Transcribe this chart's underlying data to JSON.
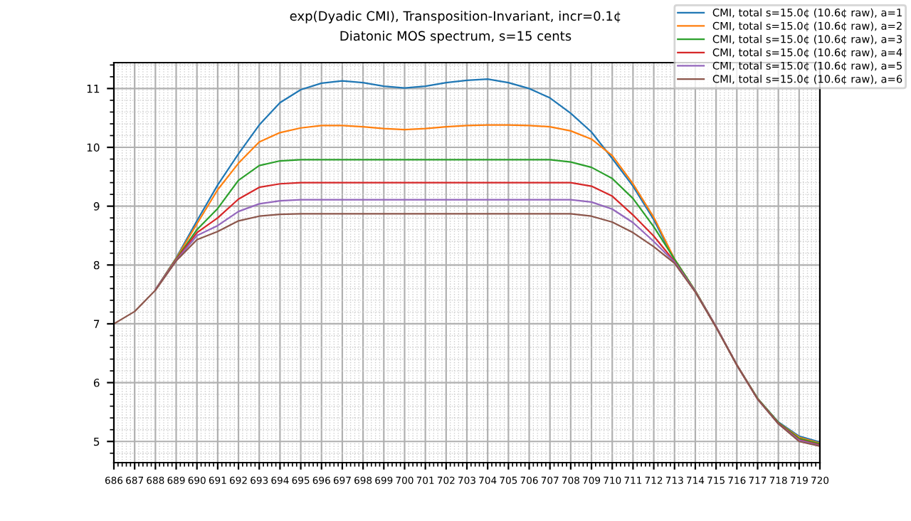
{
  "chart_data": {
    "type": "line",
    "title": "exp(Dyadic CMI), Transposition-Invariant, incr=0.1¢",
    "subtitle": "Diatonic MOS spectrum, s=15 cents",
    "x": [
      686,
      687,
      688,
      689,
      690,
      691,
      692,
      693,
      694,
      695,
      696,
      697,
      698,
      699,
      700,
      701,
      702,
      703,
      704,
      705,
      706,
      707,
      708,
      709,
      710,
      711,
      712,
      713,
      714,
      715,
      716,
      717,
      718,
      719,
      720
    ],
    "series": [
      {
        "name": "CMI, total s=15.0¢ (10.6¢ raw), a=1",
        "color": "#1f77b4",
        "values": [
          null,
          null,
          7.58,
          8.12,
          8.75,
          9.36,
          9.89,
          10.38,
          10.76,
          10.98,
          11.09,
          11.13,
          11.1,
          11.04,
          11.01,
          11.04,
          11.1,
          11.14,
          11.16,
          11.1,
          11.0,
          10.84,
          10.58,
          10.26,
          9.81,
          9.34,
          8.77,
          8.08,
          7.55,
          6.95,
          6.3,
          5.73,
          5.33,
          5.09,
          4.99
        ]
      },
      {
        "name": "CMI, total s=15.0¢ (10.6¢ raw), a=2",
        "color": "#ff7f0e",
        "values": [
          null,
          null,
          7.58,
          8.11,
          8.7,
          9.28,
          9.73,
          10.09,
          10.25,
          10.33,
          10.37,
          10.37,
          10.35,
          10.32,
          10.3,
          10.32,
          10.35,
          10.37,
          10.38,
          10.38,
          10.37,
          10.35,
          10.28,
          10.14,
          9.86,
          9.38,
          8.81,
          8.1,
          7.56,
          6.95,
          6.3,
          5.73,
          5.32,
          5.07,
          4.97
        ]
      },
      {
        "name": "CMI, total s=15.0¢ (10.6¢ raw), a=3",
        "color": "#2ca02c",
        "values": [
          null,
          null,
          7.58,
          8.1,
          8.6,
          8.96,
          9.44,
          9.69,
          9.77,
          9.79,
          9.79,
          9.79,
          9.79,
          9.79,
          9.79,
          9.79,
          9.79,
          9.79,
          9.79,
          9.79,
          9.79,
          9.79,
          9.75,
          9.66,
          9.47,
          9.13,
          8.65,
          8.1,
          7.56,
          6.95,
          6.3,
          5.73,
          5.32,
          5.05,
          4.96
        ]
      },
      {
        "name": "CMI, total s=15.0¢ (10.6¢ raw), a=4",
        "color": "#d62728",
        "values": [
          null,
          null,
          7.58,
          8.09,
          8.55,
          8.8,
          9.12,
          9.32,
          9.38,
          9.4,
          9.4,
          9.4,
          9.4,
          9.4,
          9.4,
          9.4,
          9.4,
          9.4,
          9.4,
          9.4,
          9.4,
          9.4,
          9.4,
          9.34,
          9.17,
          8.85,
          8.49,
          8.06,
          7.55,
          6.95,
          6.3,
          5.72,
          5.31,
          5.03,
          4.94
        ]
      },
      {
        "name": "CMI, total s=15.0¢ (10.6¢ raw), a=5",
        "color": "#9467bd",
        "values": [
          null,
          null,
          7.58,
          8.08,
          8.5,
          8.67,
          8.91,
          9.04,
          9.09,
          9.11,
          9.11,
          9.11,
          9.11,
          9.11,
          9.11,
          9.11,
          9.11,
          9.11,
          9.11,
          9.11,
          9.11,
          9.11,
          9.11,
          9.07,
          8.95,
          8.72,
          8.4,
          8.05,
          7.55,
          6.95,
          6.3,
          5.72,
          5.3,
          5.02,
          4.93
        ]
      },
      {
        "name": "CMI, total s=15.0¢ (10.6¢ raw), a=6",
        "color": "#8c564b",
        "values": [
          7.0,
          7.21,
          7.57,
          8.07,
          8.43,
          8.57,
          8.75,
          8.83,
          8.86,
          8.87,
          8.87,
          8.87,
          8.87,
          8.87,
          8.87,
          8.87,
          8.87,
          8.87,
          8.87,
          8.87,
          8.87,
          8.87,
          8.87,
          8.83,
          8.73,
          8.55,
          8.31,
          8.03,
          7.54,
          6.94,
          6.3,
          5.72,
          5.3,
          5.0,
          4.92
        ]
      }
    ],
    "xlim": [
      686,
      720
    ],
    "ylim": [
      4.64,
      11.44
    ],
    "xticks": [
      686,
      687,
      688,
      689,
      690,
      691,
      692,
      693,
      694,
      695,
      696,
      697,
      698,
      699,
      700,
      701,
      702,
      703,
      704,
      705,
      706,
      707,
      708,
      709,
      710,
      711,
      712,
      713,
      714,
      715,
      716,
      717,
      718,
      719,
      720
    ],
    "yticks": [
      5,
      6,
      7,
      8,
      9,
      10,
      11
    ],
    "grid": true,
    "legend": "top right"
  }
}
